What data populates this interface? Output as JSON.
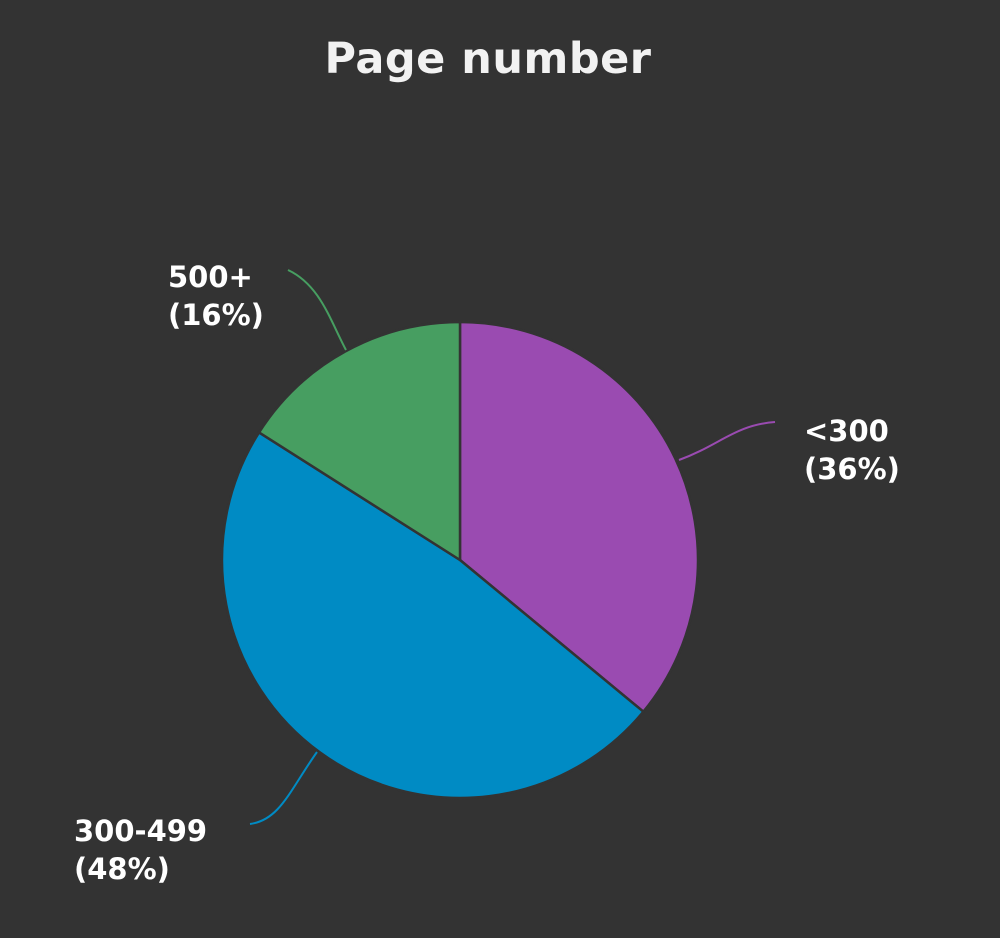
{
  "chart_data": {
    "type": "pie",
    "title": "Page number",
    "slices": [
      {
        "label": "<300",
        "percent_label": "(36%)",
        "value": 36,
        "color": "#9a4bb1"
      },
      {
        "label": "300-499",
        "percent_label": "(48%)",
        "value": 48,
        "color": "#008bc4"
      },
      {
        "label": "500+",
        "percent_label": "(16%)",
        "value": 16,
        "color": "#479e61"
      }
    ]
  },
  "style": {
    "background": "#333333",
    "slice_border": "#333333"
  }
}
